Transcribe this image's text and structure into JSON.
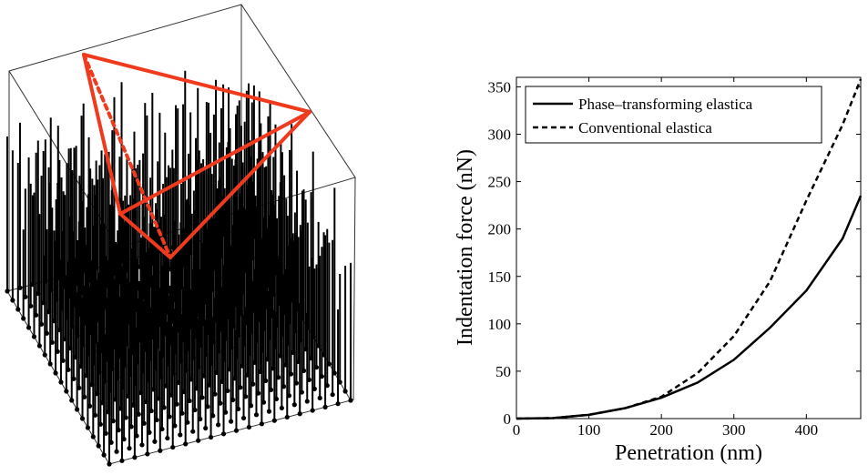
{
  "chart_data": {
    "type": "line",
    "xlabel": "Penetration (nm)",
    "ylabel": "Indentation force (nN)",
    "x": [
      0,
      50,
      100,
      150,
      200,
      250,
      300,
      350,
      400,
      450,
      475
    ],
    "series": [
      {
        "name": "Phase–transforming elastica",
        "color": "#000000",
        "dash": "solid",
        "values": [
          0,
          0.5,
          4,
          11,
          22,
          38,
          62,
          96,
          135,
          190,
          235
        ]
      },
      {
        "name": "Conventional elastica",
        "color": "#000000",
        "dash": "dashed",
        "values": [
          0,
          0.5,
          4,
          11,
          23,
          48,
          87,
          145,
          230,
          310,
          358
        ]
      }
    ],
    "xlim": [
      0,
      475
    ],
    "ylim": [
      0,
      360
    ],
    "xticks": [
      0,
      100,
      200,
      300,
      400
    ],
    "yticks": [
      0,
      50,
      100,
      150,
      200,
      250,
      300,
      350
    ],
    "legend": "upper left"
  }
}
